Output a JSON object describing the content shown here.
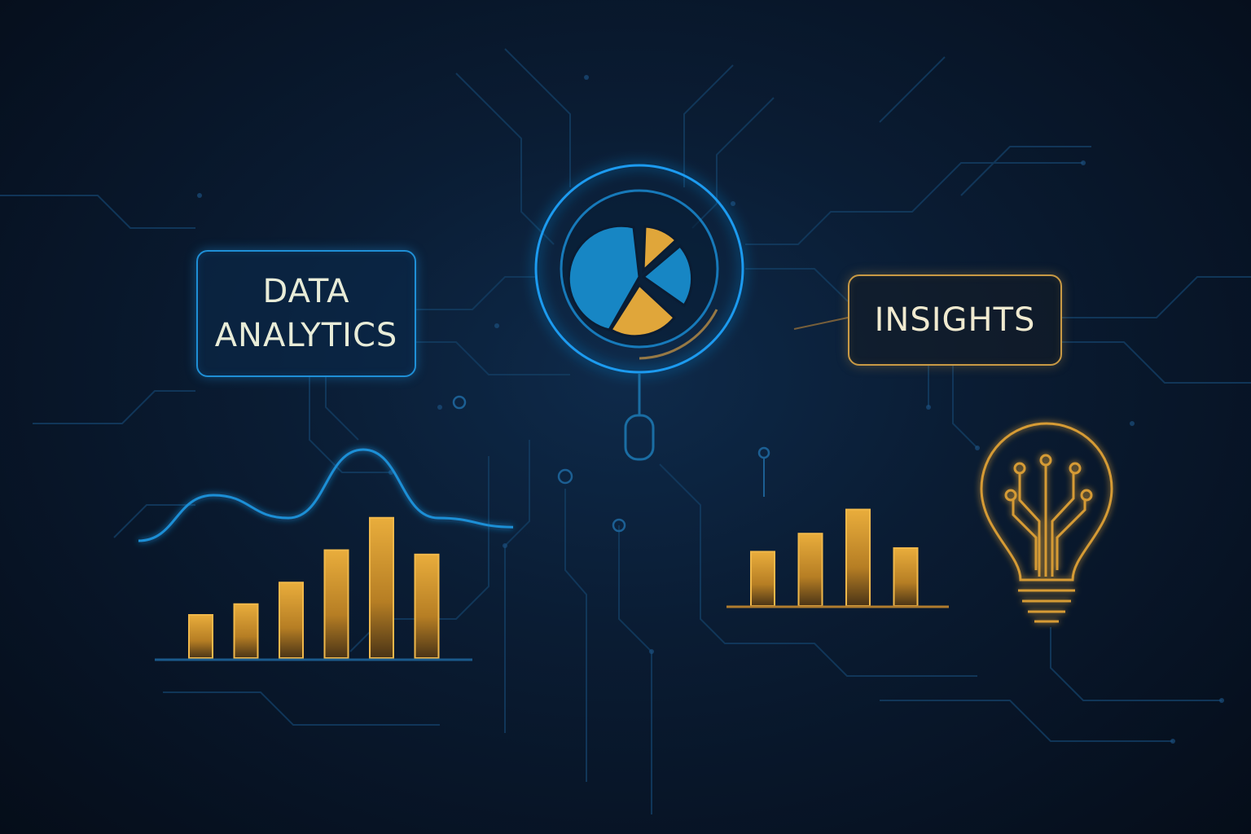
{
  "labels": {
    "data_line1": "DATA",
    "data_line2": "ANALYTICS",
    "insights": "INSIGHTS"
  },
  "colors": {
    "background": "#071324",
    "blue_accent": "#1f8fd6",
    "gold_accent": "#e0a63a",
    "circuit": "#123a5e"
  },
  "icons": {
    "center": "magnifier-pie-chart-icon",
    "right": "lightbulb-circuit-icon"
  },
  "chart_data": [
    {
      "type": "line",
      "values": [
        1,
        3,
        2,
        5,
        2,
        1.6
      ]
    },
    {
      "type": "bar",
      "values": [
        2,
        2.5,
        3.5,
        5,
        6.5,
        4.8
      ]
    },
    {
      "type": "bar",
      "values": [
        4.5,
        6,
        8,
        4.8
      ]
    }
  ]
}
